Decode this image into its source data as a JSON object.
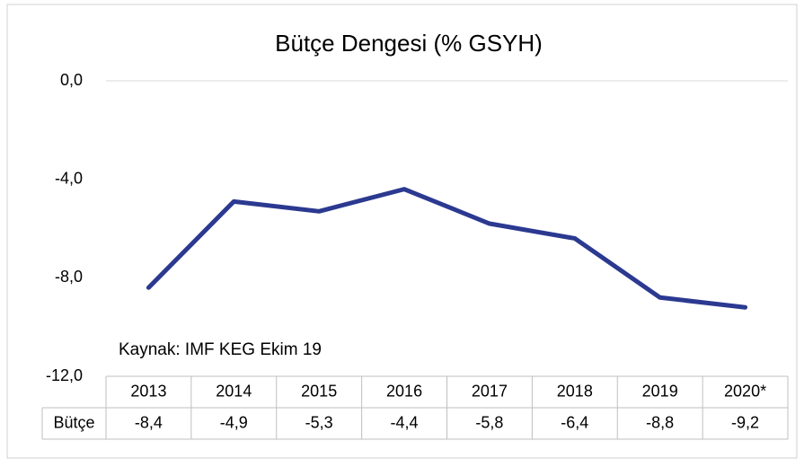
{
  "chart_data": {
    "type": "line",
    "title": "Bütçe Dengesi (% GSYH)",
    "categories": [
      "2013",
      "2014",
      "2015",
      "2016",
      "2017",
      "2018",
      "2019",
      "2020*"
    ],
    "series": [
      {
        "name": "Bütçe",
        "color": "#2b3990",
        "values": [
          -8.4,
          -4.9,
          -5.3,
          -4.4,
          -5.8,
          -6.4,
          -8.8,
          -9.2
        ],
        "value_labels": [
          "-8,4",
          "-4,9",
          "-5,3",
          "-4,4",
          "-5,8",
          "-6,4",
          "-8,8",
          "-9,2"
        ]
      }
    ],
    "ylim": [
      -12,
      0
    ],
    "yticks": [
      {
        "value": 0,
        "label": "0,0"
      },
      {
        "value": -4,
        "label": "-4,0"
      },
      {
        "value": -8,
        "label": "-8,0"
      },
      {
        "value": -12,
        "label": "-12,0"
      }
    ],
    "annotation": "Kaynak: IMF KEG Ekim 19",
    "grid": false
  }
}
